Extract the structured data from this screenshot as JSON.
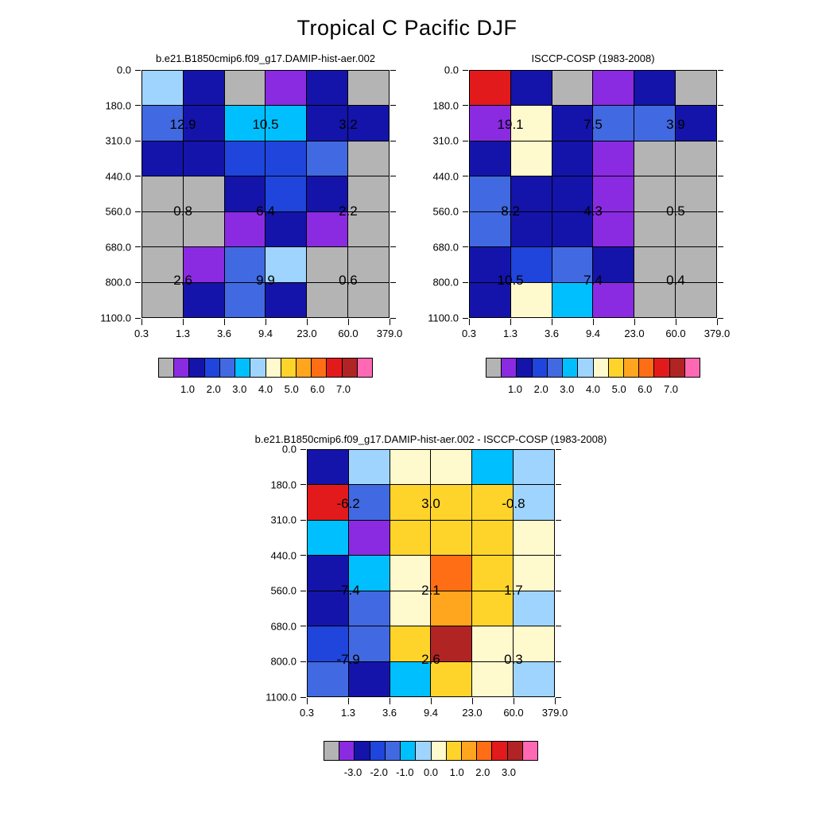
{
  "title": "Tropical C Pacific DJF",
  "palette": [
    "#b4b4b4",
    "#8a2be2",
    "#1414aa",
    "#1f45dc",
    "#4169e1",
    "#00bfff",
    "#9fd4ff",
    "#fffacd",
    "#ffd42a",
    "#ffa51e",
    "#ff6e14",
    "#e31a1c",
    "#b02424",
    "#ff69b4"
  ],
  "chart_data": [
    {
      "type": "heatmap",
      "title": "b.e21.B1850cmip6.f09_g17.DAMIP-hist-aer.002",
      "x_ticks": [
        "0.3",
        "1.3",
        "3.6",
        "9.4",
        "23.0",
        "60.0",
        "379.0"
      ],
      "y_ticks": [
        "0.0",
        "180.0",
        "310.0",
        "440.0",
        "560.0",
        "680.0",
        "800.0",
        "1100.0"
      ],
      "legend_position": "bottom",
      "grid": true,
      "cells": [
        [
          6,
          2,
          0,
          1,
          2,
          0
        ],
        [
          4,
          2,
          5,
          5,
          2,
          2
        ],
        [
          2,
          2,
          3,
          3,
          4,
          0
        ],
        [
          0,
          0,
          2,
          3,
          2,
          0
        ],
        [
          0,
          0,
          1,
          2,
          1,
          0
        ],
        [
          0,
          1,
          4,
          6,
          0,
          0
        ],
        [
          0,
          2,
          4,
          2,
          0,
          0
        ]
      ],
      "annotations": [
        {
          "text": "12.9",
          "x": 0.167,
          "y": 0.22
        },
        {
          "text": "10.5",
          "x": 0.5,
          "y": 0.22
        },
        {
          "text": "3.2",
          "x": 0.833,
          "y": 0.22
        },
        {
          "text": "0.8",
          "x": 0.167,
          "y": 0.571
        },
        {
          "text": "6.4",
          "x": 0.5,
          "y": 0.571
        },
        {
          "text": "2.2",
          "x": 0.833,
          "y": 0.571
        },
        {
          "text": "2.6",
          "x": 0.167,
          "y": 0.85
        },
        {
          "text": "9.9",
          "x": 0.5,
          "y": 0.85
        },
        {
          "text": "0.6",
          "x": 0.833,
          "y": 0.85
        }
      ],
      "colorbar_labels": [
        "1.0",
        "2.0",
        "3.0",
        "4.0",
        "5.0",
        "6.0",
        "7.0"
      ]
    },
    {
      "type": "heatmap",
      "title": "ISCCP-COSP (1983-2008)",
      "x_ticks": [
        "0.3",
        "1.3",
        "3.6",
        "9.4",
        "23.0",
        "60.0",
        "379.0"
      ],
      "y_ticks": [
        "0.0",
        "180.0",
        "310.0",
        "440.0",
        "560.0",
        "680.0",
        "800.0",
        "1100.0"
      ],
      "legend_position": "bottom",
      "grid": true,
      "cells": [
        [
          11,
          2,
          0,
          1,
          2,
          0
        ],
        [
          1,
          7,
          2,
          4,
          4,
          2
        ],
        [
          2,
          7,
          2,
          1,
          0,
          0
        ],
        [
          4,
          2,
          2,
          1,
          0,
          0
        ],
        [
          4,
          2,
          2,
          1,
          0,
          0
        ],
        [
          2,
          3,
          4,
          2,
          0,
          0
        ],
        [
          2,
          7,
          5,
          1,
          0,
          0
        ]
      ],
      "annotations": [
        {
          "text": "19.1",
          "x": 0.167,
          "y": 0.22
        },
        {
          "text": "7.5",
          "x": 0.5,
          "y": 0.22
        },
        {
          "text": "3.9",
          "x": 0.833,
          "y": 0.22
        },
        {
          "text": "8.2",
          "x": 0.167,
          "y": 0.571
        },
        {
          "text": "4.3",
          "x": 0.5,
          "y": 0.571
        },
        {
          "text": "0.5",
          "x": 0.833,
          "y": 0.571
        },
        {
          "text": "10.5",
          "x": 0.167,
          "y": 0.85
        },
        {
          "text": "7.4",
          "x": 0.5,
          "y": 0.85
        },
        {
          "text": "0.4",
          "x": 0.833,
          "y": 0.85
        }
      ],
      "colorbar_labels": [
        "1.0",
        "2.0",
        "3.0",
        "4.0",
        "5.0",
        "6.0",
        "7.0"
      ]
    },
    {
      "type": "heatmap",
      "title": "b.e21.B1850cmip6.f09_g17.DAMIP-hist-aer.002 - ISCCP-COSP (1983-2008)",
      "x_ticks": [
        "0.3",
        "1.3",
        "3.6",
        "9.4",
        "23.0",
        "60.0",
        "379.0"
      ],
      "y_ticks": [
        "0.0",
        "180.0",
        "310.0",
        "440.0",
        "560.0",
        "680.0",
        "800.0",
        "1100.0"
      ],
      "legend_position": "bottom",
      "grid": true,
      "cells": [
        [
          2,
          6,
          7,
          7,
          5,
          6
        ],
        [
          11,
          4,
          8,
          8,
          8,
          6
        ],
        [
          5,
          1,
          8,
          8,
          8,
          7
        ],
        [
          2,
          5,
          7,
          10,
          8,
          7
        ],
        [
          2,
          4,
          7,
          9,
          8,
          6
        ],
        [
          3,
          4,
          8,
          12,
          7,
          7
        ],
        [
          4,
          2,
          5,
          8,
          7,
          6
        ]
      ],
      "annotations": [
        {
          "text": "-6.2",
          "x": 0.167,
          "y": 0.22
        },
        {
          "text": "3.0",
          "x": 0.5,
          "y": 0.22
        },
        {
          "text": "-0.8",
          "x": 0.833,
          "y": 0.22
        },
        {
          "text": "-7.4",
          "x": 0.167,
          "y": 0.571
        },
        {
          "text": "2.1",
          "x": 0.5,
          "y": 0.571
        },
        {
          "text": "1.7",
          "x": 0.833,
          "y": 0.571
        },
        {
          "text": "-7.9",
          "x": 0.167,
          "y": 0.85
        },
        {
          "text": "2.6",
          "x": 0.5,
          "y": 0.85
        },
        {
          "text": "0.3",
          "x": 0.833,
          "y": 0.85
        }
      ],
      "colorbar_labels": [
        "-3.0",
        "-2.0",
        "-1.0",
        "0.0",
        "1.0",
        "2.0",
        "3.0"
      ]
    }
  ]
}
